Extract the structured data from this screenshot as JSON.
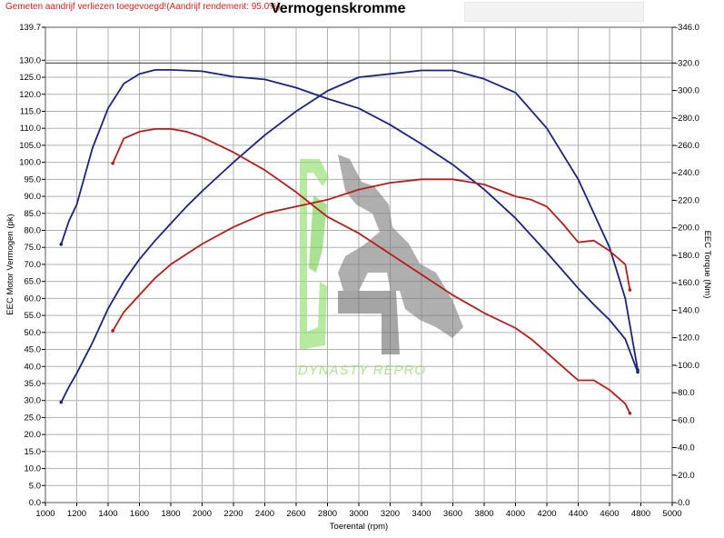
{
  "header": {
    "notice": "Gemeten aandrijf verliezen toegevoegd!(Aandrijf rendement: 95.0%)",
    "title": "Vermogenskromme"
  },
  "watermark": {
    "text": "DYNASTY REPRO"
  },
  "chart_data": {
    "type": "line",
    "title": "Vermogenskromme",
    "xlabel": "Toerental (rpm)",
    "ylabel": "EEC Motor Vermogen (pk)",
    "y2label": "EEC Torque (Nm)",
    "xlim": [
      1000,
      5000
    ],
    "ylim": [
      0,
      139.7
    ],
    "y2lim": [
      0,
      346
    ],
    "grid": true,
    "x_ticks": [
      "1000",
      "1200",
      "1400",
      "1600",
      "1800",
      "2000",
      "2200",
      "2400",
      "2600",
      "2800",
      "3000",
      "3200",
      "3400",
      "3600",
      "3800",
      "4000",
      "4200",
      "4400",
      "4600",
      "4800",
      "5000"
    ],
    "y_ticks": [
      "0.0",
      "5.0",
      "10.0",
      "15.0",
      "20.0",
      "25.0",
      "30.0",
      "35.0",
      "40.0",
      "45.0",
      "50.0",
      "55.0",
      "60.0",
      "65.0",
      "70.0",
      "75.0",
      "80.0",
      "85.0",
      "90.0",
      "95.0",
      "100.0",
      "105.0",
      "110.0",
      "115.0",
      "120.0",
      "125.0",
      "130.0",
      "139.7"
    ],
    "y2_ticks": [
      "0.0",
      "20.0",
      "40.0",
      "60.0",
      "80.0",
      "100.0",
      "120.0",
      "140.0",
      "160.0",
      "180.0",
      "200.0",
      "220.0",
      "240.0",
      "260.0",
      "280.0",
      "300.0",
      "320.0",
      "346.0"
    ],
    "reference_line": {
      "axis": "y2",
      "value": 320
    },
    "series": [
      {
        "axis": "y",
        "color": "#1a237e",
        "x": [
          1100,
          1150,
          1200,
          1300,
          1400,
          1500,
          1600,
          1700,
          1800,
          1900,
          2000,
          2200,
          2400,
          2600,
          2800,
          3000,
          3200,
          3400,
          3600,
          3800,
          4000,
          4200,
          4400,
          4600,
          4700,
          4780
        ],
        "y": [
          29.5,
          34,
          38,
          47,
          57,
          65,
          71.5,
          77,
          82,
          87,
          91.5,
          100,
          108,
          115,
          121,
          125,
          126,
          127,
          127,
          124.5,
          120.5,
          110,
          95,
          75,
          60,
          39
        ]
      },
      {
        "axis": "y2",
        "color": "#1a237e",
        "x": [
          1100,
          1150,
          1200,
          1300,
          1400,
          1500,
          1600,
          1700,
          1800,
          2000,
          2200,
          2400,
          2600,
          2800,
          3000,
          3200,
          3400,
          3600,
          3800,
          4000,
          4200,
          4400,
          4500,
          4600,
          4700,
          4780
        ],
        "y": [
          188,
          205,
          217,
          258,
          287,
          305,
          312,
          315,
          315,
          314,
          310,
          308,
          302,
          294,
          287,
          275,
          261,
          246,
          228,
          207,
          182,
          156,
          144,
          133,
          119,
          95
        ]
      },
      {
        "axis": "y",
        "color": "#b71c1c",
        "x": [
          1430,
          1500,
          1600,
          1700,
          1800,
          2000,
          2200,
          2400,
          2600,
          2800,
          3000,
          3200,
          3400,
          3600,
          3800,
          4000,
          4100,
          4200,
          4300,
          4400,
          4500,
          4600,
          4700,
          4730
        ],
        "y": [
          50.5,
          56,
          61,
          66,
          70,
          76,
          81,
          85,
          87,
          89,
          92,
          94,
          95,
          95,
          93.5,
          90,
          89,
          87,
          82,
          76.5,
          77,
          74,
          70,
          62.5
        ]
      },
      {
        "axis": "y2",
        "color": "#b71c1c",
        "x": [
          1430,
          1500,
          1600,
          1700,
          1800,
          1900,
          2000,
          2200,
          2400,
          2600,
          2800,
          3000,
          3200,
          3400,
          3600,
          3800,
          4000,
          4100,
          4200,
          4300,
          4400,
          4500,
          4600,
          4700,
          4730
        ],
        "y": [
          247,
          265,
          270,
          272,
          272,
          270,
          266,
          255,
          242,
          226,
          208,
          196,
          181,
          166,
          151,
          138,
          127,
          119,
          109,
          99,
          89,
          89,
          82,
          72,
          65
        ]
      }
    ]
  }
}
